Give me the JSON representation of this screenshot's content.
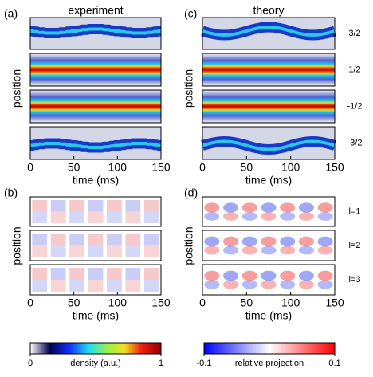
{
  "chart_data": [
    {
      "type": "density",
      "panel": "(a)",
      "title": "experiment",
      "xlabel": "time (ms)",
      "ylabel": "position",
      "xlim": [
        0,
        150
      ],
      "xticks": [
        0,
        50,
        100,
        150
      ]
    },
    {
      "type": "projection",
      "panel": "(b)",
      "xlabel": "time (ms)",
      "ylabel": "position",
      "xlim": [
        0,
        150
      ],
      "xticks": [
        0,
        50,
        100,
        150
      ]
    },
    {
      "type": "density",
      "panel": "(c)",
      "title": "theory",
      "xlabel": "time (ms)",
      "ylabel": "position",
      "xlim": [
        0,
        150
      ],
      "xticks": [
        0,
        50,
        100,
        150
      ],
      "rows": [
        "3/2",
        "1/2",
        "-1/2",
        "-3/2"
      ]
    },
    {
      "type": "projection",
      "panel": "(d)",
      "xlabel": "time (ms)",
      "ylabel": "position",
      "xlim": [
        0,
        150
      ],
      "xticks": [
        0,
        50,
        100,
        150
      ],
      "rows": [
        "l=1",
        "l=2",
        "l=3"
      ]
    }
  ],
  "colorbars": [
    {
      "label": "density (a.u.)",
      "lim": [
        0,
        1
      ],
      "ticks": [
        0,
        1
      ]
    },
    {
      "label": "relative projection",
      "lim": [
        -0.1,
        0.1
      ],
      "ticks": [
        -0.1,
        0.1
      ]
    }
  ]
}
